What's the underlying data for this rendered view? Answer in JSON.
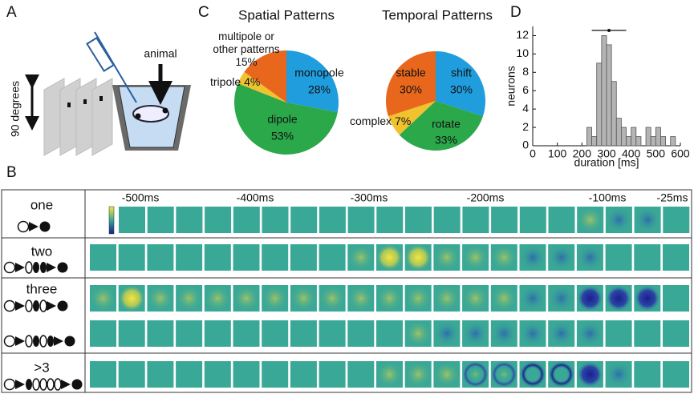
{
  "panels": {
    "a": {
      "label": "A",
      "vertical_label": "90 degrees",
      "animal_label": "animal"
    },
    "b": {
      "label": "B",
      "time_labels": [
        "-500ms",
        "-400ms",
        "-300ms",
        "-200ms",
        "-100ms",
        "-25ms"
      ],
      "rows": [
        "one",
        "two",
        "three",
        ">3"
      ]
    },
    "c": {
      "label": "C"
    },
    "d": {
      "label": "D"
    }
  },
  "chart_data": [
    {
      "type": "pie",
      "title": "Spatial Patterns",
      "categories": [
        "monopole",
        "dipole",
        "tripole",
        "multipole or other patterns"
      ],
      "values": [
        28,
        53,
        4,
        15
      ],
      "value_labels": [
        "28%",
        "53%",
        "4%",
        "15%"
      ],
      "colors": [
        "#1f9ddd",
        "#2aa84a",
        "#f0c22e",
        "#e8671d"
      ]
    },
    {
      "type": "pie",
      "title": "Temporal Patterns",
      "categories": [
        "shift",
        "rotate",
        "complex",
        "stable"
      ],
      "values": [
        30,
        33,
        7,
        30
      ],
      "value_labels": [
        "30%",
        "33%",
        "7%",
        "30%"
      ],
      "colors": [
        "#1f9ddd",
        "#2aa84a",
        "#f0c22e",
        "#e8671d"
      ]
    },
    {
      "type": "histogram",
      "xlabel": "duration [ms]",
      "ylabel": "neurons",
      "bins": [
        220,
        240,
        260,
        280,
        300,
        320,
        340,
        360,
        380,
        400,
        420,
        440,
        460,
        480,
        500,
        520,
        540,
        560,
        580
      ],
      "values": [
        2,
        1,
        9,
        12,
        11,
        7,
        3,
        2,
        1,
        2,
        1,
        0,
        2,
        1,
        2,
        1,
        0,
        1
      ],
      "mean": 310,
      "error": 70,
      "color": "#b4b4b4",
      "xlim": [
        0,
        600
      ],
      "xticks": [
        0,
        100,
        200,
        300,
        400,
        500,
        600
      ],
      "ylim": [
        0,
        13
      ],
      "yticks": [
        0,
        2,
        4,
        6,
        8,
        10,
        12
      ]
    }
  ]
}
